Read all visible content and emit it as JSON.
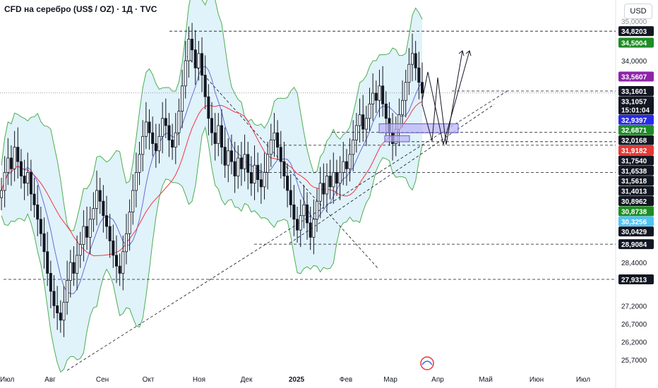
{
  "header": {
    "title": "CFD на серебро (US$ / OZ) · 1Д · TVC",
    "currency": "USD"
  },
  "colors": {
    "up": "#131722",
    "down": "#131722",
    "band_fill": "#d6eef8",
    "band_line": "#4caf50",
    "ma_fast": "#6b6bd6",
    "ma_slow": "#f23645",
    "zone_fill": "#b9b4f2",
    "zone_border": "#6a5acd"
  },
  "chart_data": {
    "type": "candlestick",
    "ylim": [
      25.7,
      35.0
    ],
    "y_ticks": [
      "25,7000",
      "26,2000",
      "26,7000",
      "27,2000",
      "28,4000",
      "34,0000"
    ],
    "top_tick": "35,0000",
    "x_labels": [
      "Июл",
      "Авг",
      "Сен",
      "Окт",
      "Ноя",
      "Дек",
      "2025",
      "Фев",
      "Мар",
      "Апр",
      "Май",
      "Июн",
      "Июл"
    ],
    "price_tags": [
      {
        "value": 34.8203,
        "text": "34,8203",
        "color": "#131722"
      },
      {
        "value": 34.5004,
        "text": "34,5004",
        "color": "#1e8c24"
      },
      {
        "value": 33.5607,
        "text": "33,5607",
        "color": "#8e24aa"
      },
      {
        "value": 33.1601,
        "text": "33,1601",
        "color": "#131722"
      },
      {
        "value": 33.1057,
        "text": "33,1057",
        "color": "#131722",
        "sub": "15:01:04"
      },
      {
        "value": 32.9397,
        "text": "32,9397",
        "color": "#2a2ae6"
      },
      {
        "value": 32.6871,
        "text": "32,6871",
        "color": "#1e8c24"
      },
      {
        "value": 32.0168,
        "text": "32,0168",
        "color": "#131722"
      },
      {
        "value": 31.9182,
        "text": "31,9182",
        "color": "#e53935"
      },
      {
        "value": 31.754,
        "text": "31,7540",
        "color": "#131722"
      },
      {
        "value": 31.6538,
        "text": "31,6538",
        "color": "#131722"
      },
      {
        "value": 31.5618,
        "text": "31,5618",
        "color": "#131722"
      },
      {
        "value": 31.4013,
        "text": "31,4013",
        "color": "#131722"
      },
      {
        "value": 30.8962,
        "text": "30,8962",
        "color": "#131722"
      },
      {
        "value": 30.8738,
        "text": "30,8738",
        "color": "#1e8c24"
      },
      {
        "value": 30.3256,
        "text": "30,3256",
        "color": "#4fc3f7"
      },
      {
        "value": 30.0429,
        "text": "30,0429",
        "color": "#131722"
      },
      {
        "value": 28.9084,
        "text": "28,9084",
        "color": "#131722"
      },
      {
        "value": 27.9313,
        "text": "27,9313",
        "color": "#131722"
      }
    ],
    "closes": [
      30.4,
      30.9,
      31.3,
      31.0,
      31.6,
      31.2,
      30.8,
      30.6,
      30.9,
      30.3,
      30.0,
      29.6,
      29.2,
      28.7,
      28.1,
      27.6,
      27.2,
      27.0,
      26.8,
      27.3,
      27.9,
      28.4,
      28.1,
      28.6,
      28.9,
      29.4,
      29.1,
      29.6,
      29.9,
      30.4,
      30.1,
      29.7,
      29.4,
      29.0,
      28.6,
      28.3,
      28.1,
      28.7,
      29.2,
      29.8,
      30.4,
      30.9,
      31.4,
      31.9,
      32.3,
      32.0,
      31.7,
      31.5,
      31.9,
      32.4,
      32.2,
      31.8,
      31.6,
      32.0,
      32.6,
      33.3,
      34.0,
      34.6,
      34.3,
      33.8,
      34.2,
      33.6,
      33.0,
      32.4,
      32.0,
      31.7,
      32.2,
      31.6,
      31.1,
      31.5,
      31.2,
      30.8,
      31.3,
      31.0,
      31.4,
      30.9,
      30.6,
      31.1,
      30.7,
      30.5,
      30.9,
      31.4,
      31.8,
      32.0,
      31.6,
      31.2,
      30.8,
      30.4,
      30.0,
      29.6,
      29.3,
      29.7,
      30.0,
      29.5,
      29.1,
      29.6,
      30.1,
      30.6,
      30.3,
      30.8,
      30.5,
      30.9,
      30.6,
      30.9,
      31.2,
      31.0,
      31.4,
      31.8,
      32.2,
      32.5,
      32.1,
      32.4,
      32.8,
      33.1,
      32.9,
      33.3,
      32.8,
      32.4,
      32.0,
      31.7,
      32.1,
      32.5,
      32.9,
      33.4,
      33.9,
      34.2,
      33.8,
      33.4,
      33.1
    ]
  }
}
